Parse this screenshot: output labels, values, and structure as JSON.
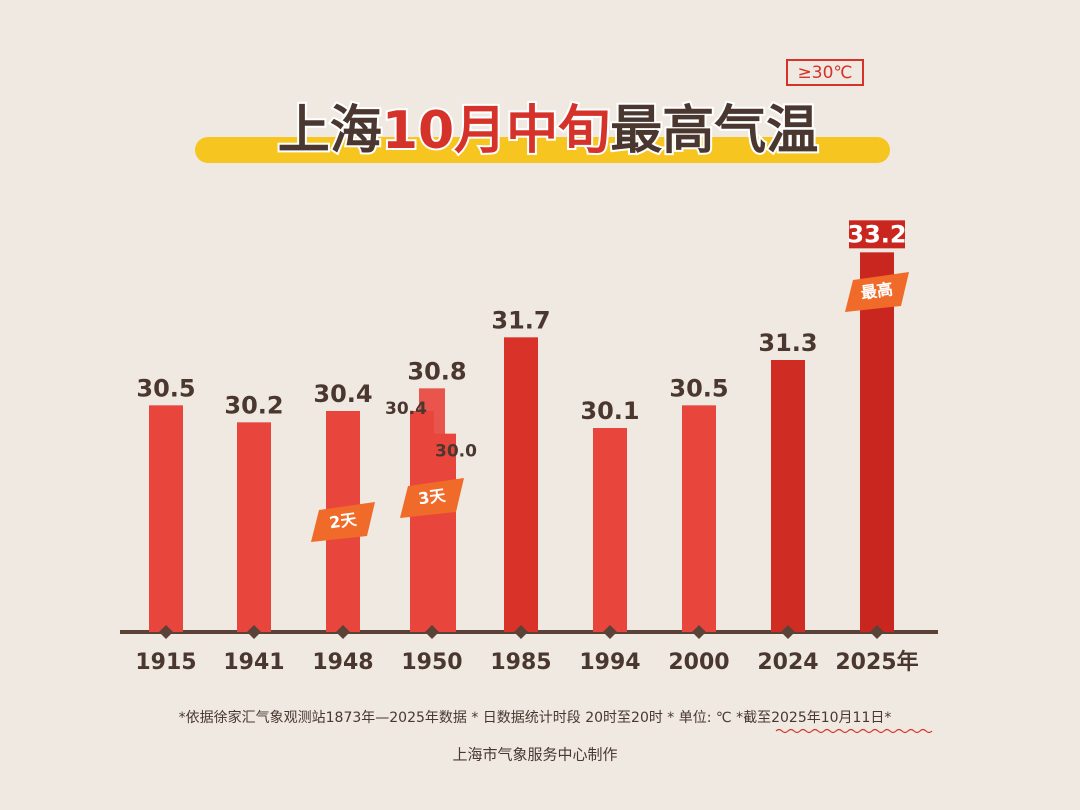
{
  "tag": "≥30℃",
  "title_parts": [
    "上海",
    "10月中旬",
    "最高气温"
  ],
  "chart_data": {
    "type": "bar",
    "ylim": [
      26.5,
      34
    ],
    "groups": [
      {
        "category": "1915",
        "values": [
          30.5
        ],
        "color": "#e8453c"
      },
      {
        "category": "1941",
        "values": [
          30.2
        ],
        "color": "#e8453c"
      },
      {
        "category": "1948",
        "values": [
          30.4
        ],
        "color": "#e8453c",
        "badge": "2天"
      },
      {
        "category": "1950",
        "values": [
          30.4,
          30.8,
          30.0
        ],
        "value_labels": [
          "30.4",
          "30.8",
          "30.0"
        ],
        "color": "#e8453c",
        "badge": "3天"
      },
      {
        "category": "1985",
        "values": [
          31.7
        ],
        "color": "#d93229"
      },
      {
        "category": "1994",
        "values": [
          30.1
        ],
        "color": "#e8453c"
      },
      {
        "category": "2000",
        "values": [
          30.5
        ],
        "color": "#e8453c"
      },
      {
        "category": "2024",
        "values": [
          31.3
        ],
        "color": "#cf2c24"
      },
      {
        "category": "2025年",
        "values": [
          33.2
        ],
        "color": "#c9261f",
        "badge": "最高"
      }
    ]
  },
  "footnote": "*依据徐家汇气象观测站1873年—2025年数据 * 日数据统计时段 20时至20时 * 单位: ℃ *截至2025年10月11日*",
  "credit": "上海市气象服务中心制作"
}
